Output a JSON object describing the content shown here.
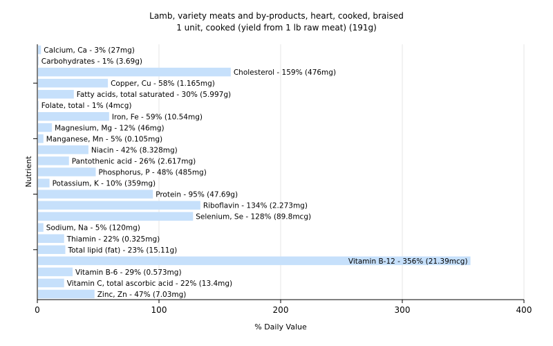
{
  "chart_data": {
    "type": "bar",
    "orientation": "horizontal",
    "title": "Lamb, variety meats and by-products, heart, cooked, braised",
    "subtitle": "1 unit, cooked (yield from 1 lb raw meat) (191g)",
    "xlabel": "% Daily Value",
    "ylabel": "Nutrient",
    "xlim": [
      0,
      400
    ],
    "xticks": [
      0,
      100,
      200,
      300,
      400
    ],
    "grid": true,
    "bar_color": "#c6e0fb",
    "categories": [
      "Calcium, Ca",
      "Carbohydrates",
      "Cholesterol",
      "Copper, Cu",
      "Fatty acids, total saturated",
      "Folate, total",
      "Iron, Fe",
      "Magnesium, Mg",
      "Manganese, Mn",
      "Niacin",
      "Pantothenic acid",
      "Phosphorus, P",
      "Potassium, K",
      "Protein",
      "Riboflavin",
      "Selenium, Se",
      "Sodium, Na",
      "Thiamin",
      "Total lipid (fat)",
      "Vitamin B-12",
      "Vitamin B-6",
      "Vitamin C, total ascorbic acid",
      "Zinc, Zn"
    ],
    "values": [
      3,
      1,
      159,
      58,
      30,
      1,
      59,
      12,
      5,
      42,
      26,
      48,
      10,
      95,
      134,
      128,
      5,
      22,
      23,
      356,
      29,
      22,
      47
    ],
    "labels": [
      "Calcium, Ca - 3% (27mg)",
      "Carbohydrates - 1% (3.69g)",
      "Cholesterol - 159% (476mg)",
      "Copper, Cu - 58% (1.165mg)",
      "Fatty acids, total saturated - 30% (5.997g)",
      "Folate, total - 1% (4mcg)",
      "Iron, Fe - 59% (10.54mg)",
      "Magnesium, Mg - 12% (46mg)",
      "Manganese, Mn - 5% (0.105mg)",
      "Niacin - 42% (8.328mg)",
      "Pantothenic acid - 26% (2.617mg)",
      "Phosphorus, P - 48% (485mg)",
      "Potassium, K - 10% (359mg)",
      "Protein - 95% (47.69g)",
      "Riboflavin - 134% (2.273mg)",
      "Selenium, Se - 128% (89.8mcg)",
      "Sodium, Na - 5% (120mg)",
      "Thiamin - 22% (0.325mg)",
      "Total lipid (fat) - 23% (15.11g)",
      "Vitamin B-12 - 356% (21.39mcg)",
      "Vitamin B-6 - 29% (0.573mg)",
      "Vitamin C, total ascorbic acid - 22% (13.4mg)",
      "Zinc, Zn - 47% (7.03mg)"
    ]
  }
}
